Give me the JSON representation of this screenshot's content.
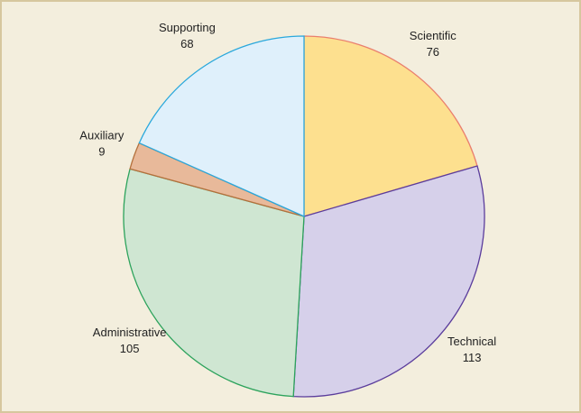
{
  "chart_data": {
    "type": "pie",
    "categories": [
      "Scientific",
      "Technical",
      "Administrative",
      "Auxiliary",
      "Supporting"
    ],
    "values": [
      76,
      113,
      105,
      9,
      68
    ],
    "colors": [
      "#fde08f",
      "#d6d0ea",
      "#cfe6d2",
      "#e8b99a",
      "#dff0fb"
    ],
    "edge_colors": [
      "#ea7f6e",
      "#5b3d9c",
      "#2da35c",
      "#b4703c",
      "#2aa8dc"
    ],
    "start_angle": 0,
    "direction": "clockwise"
  }
}
